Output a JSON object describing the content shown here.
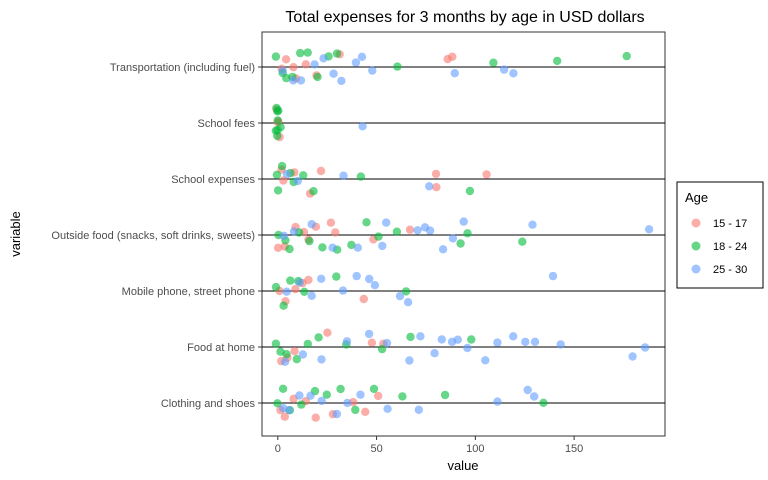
{
  "chart_data": {
    "type": "scatter",
    "title": "Total expenses for 3 months by age in USD dollars",
    "xlabel": "value",
    "ylabel": "variable",
    "xlim": [
      -8,
      196
    ],
    "x_ticks": [
      0,
      50,
      100,
      150
    ],
    "grid": false,
    "legend": {
      "title": "Age",
      "placement": "right",
      "entries": [
        {
          "name": "15 - 17",
          "color": "#F8766D"
        },
        {
          "name": "18 - 24",
          "color": "#00BA38"
        },
        {
          "name": "25 - 30",
          "color": "#619CFF"
        }
      ]
    },
    "categories": [
      "Clothing and shoes",
      "Food at home",
      "Mobile phone, street phone",
      "Outside food (snacks, soft drinks, sweets)",
      "School expenses",
      "School fees",
      "Transportation (including fuel)"
    ],
    "series": [
      {
        "name": "15 - 17",
        "color": "#F8766D",
        "points": [
          [
            "Transportation (including fuel)",
            2
          ],
          [
            "Transportation (including fuel)",
            5
          ],
          [
            "Transportation (including fuel)",
            8
          ],
          [
            "Transportation (including fuel)",
            10
          ],
          [
            "Transportation (including fuel)",
            14
          ],
          [
            "Transportation (including fuel)",
            20
          ],
          [
            "Transportation (including fuel)",
            31
          ],
          [
            "Transportation (including fuel)",
            86
          ],
          [
            "Transportation (including fuel)",
            88
          ],
          [
            "School fees",
            0
          ],
          [
            "School fees",
            0
          ],
          [
            "School fees",
            0
          ],
          [
            "School fees",
            1
          ],
          [
            "School expenses",
            1
          ],
          [
            "School expenses",
            3
          ],
          [
            "School expenses",
            8
          ],
          [
            "School expenses",
            17
          ],
          [
            "School expenses",
            22
          ],
          [
            "School expenses",
            80
          ],
          [
            "School expenses",
            81
          ],
          [
            "School expenses",
            106
          ],
          [
            "Outside food (snacks, soft drinks, sweets)",
            1
          ],
          [
            "Outside food (snacks, soft drinks, sweets)",
            4
          ],
          [
            "Outside food (snacks, soft drinks, sweets)",
            9
          ],
          [
            "Outside food (snacks, soft drinks, sweets)",
            13
          ],
          [
            "Outside food (snacks, soft drinks, sweets)",
            15
          ],
          [
            "Outside food (snacks, soft drinks, sweets)",
            20
          ],
          [
            "Outside food (snacks, soft drinks, sweets)",
            27
          ],
          [
            "Outside food (snacks, soft drinks, sweets)",
            30
          ],
          [
            "Outside food (snacks, soft drinks, sweets)",
            48
          ],
          [
            "Outside food (snacks, soft drinks, sweets)",
            66
          ],
          [
            "Mobile phone, street phone",
            1
          ],
          [
            "Mobile phone, street phone",
            4
          ],
          [
            "Mobile phone, street phone",
            9
          ],
          [
            "Mobile phone, street phone",
            13
          ],
          [
            "Mobile phone, street phone",
            15
          ],
          [
            "Mobile phone, street phone",
            44
          ],
          [
            "Food at home",
            1
          ],
          [
            "Food at home",
            4
          ],
          [
            "Food at home",
            8
          ],
          [
            "Food at home",
            25
          ],
          [
            "Food at home",
            48
          ],
          [
            "Food at home",
            54
          ],
          [
            "Clothing and shoes",
            1
          ],
          [
            "Clothing and shoes",
            4
          ],
          [
            "Clothing and shoes",
            9
          ],
          [
            "Clothing and shoes",
            14
          ],
          [
            "Clothing and shoes",
            20
          ],
          [
            "Clothing and shoes",
            28
          ],
          [
            "Clothing and shoes",
            38
          ],
          [
            "Clothing and shoes",
            45
          ],
          [
            "Clothing and shoes",
            50
          ]
        ]
      },
      {
        "name": "18 - 24",
        "color": "#00BA38",
        "points": [
          [
            "Transportation (including fuel)",
            0
          ],
          [
            "Transportation (including fuel)",
            2
          ],
          [
            "Transportation (including fuel)",
            4
          ],
          [
            "Transportation (including fuel)",
            8
          ],
          [
            "Transportation (including fuel)",
            12
          ],
          [
            "Transportation (including fuel)",
            16
          ],
          [
            "Transportation (including fuel)",
            20
          ],
          [
            "Transportation (including fuel)",
            25
          ],
          [
            "Transportation (including fuel)",
            30
          ],
          [
            "Transportation (including fuel)",
            61
          ],
          [
            "Transportation (including fuel)",
            110
          ],
          [
            "Transportation (including fuel)",
            142
          ],
          [
            "Transportation (including fuel)",
            176
          ],
          [
            "School fees",
            0
          ],
          [
            "School fees",
            0
          ],
          [
            "School fees",
            0
          ],
          [
            "School fees",
            0
          ],
          [
            "School fees",
            0
          ],
          [
            "School fees",
            0
          ],
          [
            "School fees",
            0
          ],
          [
            "School fees",
            1
          ],
          [
            "School expenses",
            0
          ],
          [
            "School expenses",
            1
          ],
          [
            "School expenses",
            3
          ],
          [
            "School expenses",
            7
          ],
          [
            "School expenses",
            9
          ],
          [
            "School expenses",
            13
          ],
          [
            "School expenses",
            18
          ],
          [
            "School expenses",
            42
          ],
          [
            "School expenses",
            98
          ],
          [
            "Outside food (snacks, soft drinks, sweets)",
            0
          ],
          [
            "Outside food (snacks, soft drinks, sweets)",
            3
          ],
          [
            "Outside food (snacks, soft drinks, sweets)",
            6
          ],
          [
            "Outside food (snacks, soft drinks, sweets)",
            10
          ],
          [
            "Outside food (snacks, soft drinks, sweets)",
            16
          ],
          [
            "Outside food (snacks, soft drinks, sweets)",
            22
          ],
          [
            "Outside food (snacks, soft drinks, sweets)",
            30
          ],
          [
            "Outside food (snacks, soft drinks, sweets)",
            37
          ],
          [
            "Outside food (snacks, soft drinks, sweets)",
            45
          ],
          [
            "Outside food (snacks, soft drinks, sweets)",
            50
          ],
          [
            "Outside food (snacks, soft drinks, sweets)",
            60
          ],
          [
            "Outside food (snacks, soft drinks, sweets)",
            92
          ],
          [
            "Outside food (snacks, soft drinks, sweets)",
            96
          ],
          [
            "Outside food (snacks, soft drinks, sweets)",
            123
          ],
          [
            "Mobile phone, street phone",
            0
          ],
          [
            "Mobile phone, street phone",
            3
          ],
          [
            "Mobile phone, street phone",
            6
          ],
          [
            "Mobile phone, street phone",
            10
          ],
          [
            "Mobile phone, street phone",
            14
          ],
          [
            "Mobile phone, street phone",
            30
          ],
          [
            "Mobile phone, street phone",
            64
          ],
          [
            "Food at home",
            0
          ],
          [
            "Food at home",
            2
          ],
          [
            "Food at home",
            5
          ],
          [
            "Food at home",
            10
          ],
          [
            "Food at home",
            15
          ],
          [
            "Food at home",
            20
          ],
          [
            "Food at home",
            35
          ],
          [
            "Food at home",
            52
          ],
          [
            "Food at home",
            68
          ],
          [
            "Food at home",
            98
          ],
          [
            "Clothing and shoes",
            0
          ],
          [
            "Clothing and shoes",
            3
          ],
          [
            "Clothing and shoes",
            7
          ],
          [
            "Clothing and shoes",
            12
          ],
          [
            "Clothing and shoes",
            18
          ],
          [
            "Clothing and shoes",
            25
          ],
          [
            "Clothing and shoes",
            32
          ],
          [
            "Clothing and shoes",
            40
          ],
          [
            "Clothing and shoes",
            48
          ],
          [
            "Clothing and shoes",
            63
          ],
          [
            "Clothing and shoes",
            85
          ],
          [
            "Clothing and shoes",
            134
          ]
        ]
      },
      {
        "name": "25 - 30",
        "color": "#619CFF",
        "points": [
          [
            "Transportation (including fuel)",
            3
          ],
          [
            "Transportation (including fuel)",
            7
          ],
          [
            "Transportation (including fuel)",
            12
          ],
          [
            "Transportation (including fuel)",
            18
          ],
          [
            "Transportation (including fuel)",
            24
          ],
          [
            "Transportation (including fuel)",
            29
          ],
          [
            "Transportation (including fuel)",
            32
          ],
          [
            "Transportation (including fuel)",
            40
          ],
          [
            "Transportation (including fuel)",
            43
          ],
          [
            "Transportation (including fuel)",
            47
          ],
          [
            "Transportation (including fuel)",
            89
          ],
          [
            "Transportation (including fuel)",
            115
          ],
          [
            "Transportation (including fuel)",
            120
          ],
          [
            "School fees",
            42
          ],
          [
            "School expenses",
            5
          ],
          [
            "School expenses",
            10
          ],
          [
            "School expenses",
            34
          ],
          [
            "School expenses",
            76
          ],
          [
            "Outside food (snacks, soft drinks, sweets)",
            3
          ],
          [
            "Outside food (snacks, soft drinks, sweets)",
            8
          ],
          [
            "Outside food (snacks, soft drinks, sweets)",
            18
          ],
          [
            "Outside food (snacks, soft drinks, sweets)",
            28
          ],
          [
            "Outside food (snacks, soft drinks, sweets)",
            40
          ],
          [
            "Outside food (snacks, soft drinks, sweets)",
            53
          ],
          [
            "Outside food (snacks, soft drinks, sweets)",
            55
          ],
          [
            "Outside food (snacks, soft drinks, sweets)",
            70
          ],
          [
            "Outside food (snacks, soft drinks, sweets)",
            75
          ],
          [
            "Outside food (snacks, soft drinks, sweets)",
            78
          ],
          [
            "Outside food (snacks, soft drinks, sweets)",
            84
          ],
          [
            "Outside food (snacks, soft drinks, sweets)",
            88
          ],
          [
            "Outside food (snacks, soft drinks, sweets)",
            94
          ],
          [
            "Outside food (snacks, soft drinks, sweets)",
            129
          ],
          [
            "Outside food (snacks, soft drinks, sweets)",
            188
          ],
          [
            "Mobile phone, street phone",
            5
          ],
          [
            "Mobile phone, street phone",
            11
          ],
          [
            "Mobile phone, street phone",
            17
          ],
          [
            "Mobile phone, street phone",
            22
          ],
          [
            "Mobile phone, street phone",
            34
          ],
          [
            "Mobile phone, street phone",
            40
          ],
          [
            "Mobile phone, street phone",
            46
          ],
          [
            "Mobile phone, street phone",
            50
          ],
          [
            "Mobile phone, street phone",
            62
          ],
          [
            "Mobile phone, street phone",
            65
          ],
          [
            "Mobile phone, street phone",
            140
          ],
          [
            "Food at home",
            3
          ],
          [
            "Food at home",
            12
          ],
          [
            "Food at home",
            22
          ],
          [
            "Food at home",
            36
          ],
          [
            "Food at home",
            46
          ],
          [
            "Food at home",
            55
          ],
          [
            "Food at home",
            67
          ],
          [
            "Food at home",
            72
          ],
          [
            "Food at home",
            79
          ],
          [
            "Food at home",
            84
          ],
          [
            "Food at home",
            89
          ],
          [
            "Food at home",
            92
          ],
          [
            "Food at home",
            96
          ],
          [
            "Food at home",
            105
          ],
          [
            "Food at home",
            112
          ],
          [
            "Food at home",
            120
          ],
          [
            "Food at home",
            126
          ],
          [
            "Food at home",
            131
          ],
          [
            "Food at home",
            144
          ],
          [
            "Food at home",
            180
          ],
          [
            "Food at home",
            186
          ],
          [
            "Clothing and shoes",
            2
          ],
          [
            "Clothing and shoes",
            6
          ],
          [
            "Clothing and shoes",
            11
          ],
          [
            "Clothing and shoes",
            16
          ],
          [
            "Clothing and shoes",
            22
          ],
          [
            "Clothing and shoes",
            30
          ],
          [
            "Clothing and shoes",
            36
          ],
          [
            "Clothing and shoes",
            42
          ],
          [
            "Clothing and shoes",
            55
          ],
          [
            "Clothing and shoes",
            72
          ],
          [
            "Clothing and shoes",
            112
          ],
          [
            "Clothing and shoes",
            126
          ],
          [
            "Clothing and shoes",
            130
          ]
        ]
      }
    ]
  }
}
